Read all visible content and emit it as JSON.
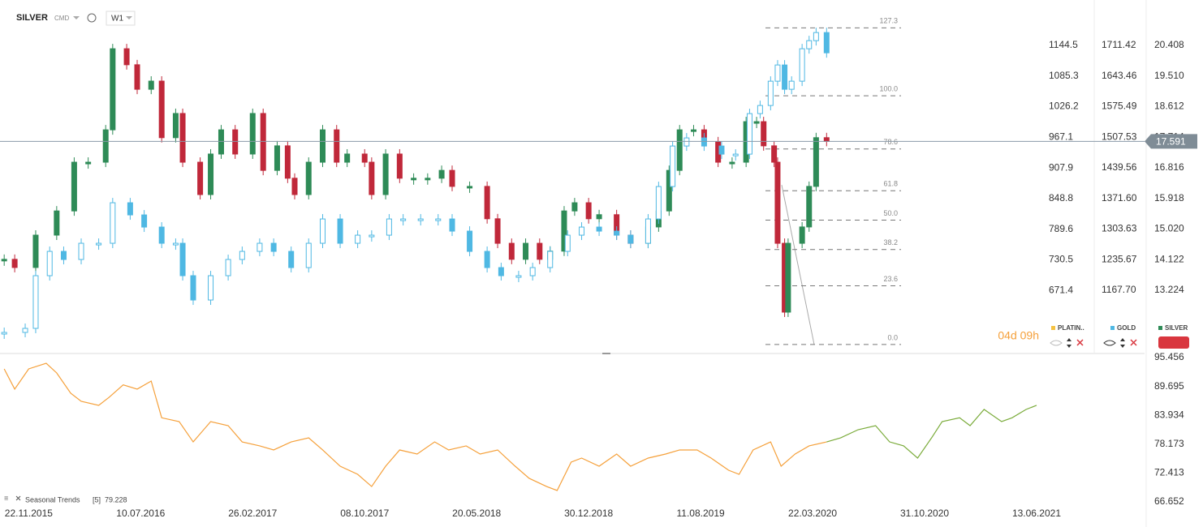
{
  "header": {
    "symbol": "SILVER",
    "market": "CMD",
    "interval": "W1",
    "countdown": "04d 09h"
  },
  "chart_data": [
    {
      "type": "candlestick",
      "xlim": [
        -1.2,
        295.7
      ],
      "xticks": [
        {
          "value": 7,
          "label": "22.11.2015"
        },
        {
          "value": 39,
          "label": "10.07.2016"
        },
        {
          "value": 71,
          "label": "26.02.2017"
        },
        {
          "value": 103,
          "label": "08.10.2017"
        },
        {
          "value": 135,
          "label": "20.05.2018"
        },
        {
          "value": 167,
          "label": "30.12.2018"
        },
        {
          "value": 199,
          "label": "11.08.2019"
        },
        {
          "value": 231,
          "label": "22.03.2020"
        },
        {
          "value": 263,
          "label": "31.10.2020"
        },
        {
          "value": 295,
          "label": "13.06.2021"
        }
      ],
      "ylim": [
        11.39,
        21.74
      ],
      "yticks": [
        20.408,
        {
          "value": 19.51,
          "label": "19.510"
        },
        18.612,
        17.714,
        16.816,
        15.918,
        {
          "value": 15.02,
          "label": "15.020"
        },
        14.122,
        13.224
      ],
      "y2lim": [
        1029.0,
        1812.3
      ],
      "y2ticks": [
        1711.42,
        1643.46,
        1575.49,
        1507.53,
        1439.56,
        {
          "value": 1371.6,
          "label": "1371.60"
        },
        1303.63,
        1235.67,
        {
          "value": 1167.7,
          "label": "1167.70"
        }
      ],
      "y3lim": [
        551.1,
        1232.2
      ],
      "y3ticks": [
        1144.5,
        1085.3,
        1026.2,
        967.1,
        907.9,
        848.8,
        789.6,
        730.5,
        671.4
      ],
      "last_price": 17.591,
      "fib": {
        "low": 11.63,
        "high": 18.93,
        "levels": [
          127.3,
          {
            "value": 100,
            "label": "100.0"
          },
          78.6,
          61.8,
          {
            "value": 50,
            "label": "50.0"
          },
          38.2,
          23.6,
          {
            "value": 0,
            "label": "0.0"
          }
        ]
      },
      "hidden_series": [
        {
          "name": "PLATIN..",
          "color": "#f5c242"
        }
      ],
      "series": [
        {
          "name": "SILVER",
          "color": "#2e8b57",
          "down_color": "#c0283a",
          "x": [
            0,
            3,
            9,
            15,
            20,
            24,
            29,
            31,
            35,
            38,
            42,
            45,
            49,
            51,
            56,
            59,
            62,
            66,
            71,
            74,
            78,
            81,
            83,
            87,
            91,
            95,
            98,
            103,
            105,
            109,
            113,
            117,
            121,
            125,
            128,
            133,
            138,
            141,
            145,
            149,
            153,
            156,
            160,
            163,
            167,
            170,
            175,
            179,
            184,
            187,
            190,
            193,
            197,
            200,
            204,
            208,
            212,
            215,
            217,
            220,
            221,
            223,
            224,
            228,
            230,
            232,
            235
          ],
          "values": [
            14.13,
            13.89,
            14.84,
            15.55,
            16.98,
            16.98,
            17.93,
            20.31,
            19.84,
            19.12,
            19.36,
            17.7,
            18.41,
            16.98,
            16.03,
            17.22,
            17.93,
            17.22,
            18.41,
            16.74,
            17.46,
            16.51,
            16.03,
            16.98,
            17.93,
            16.98,
            17.22,
            16.98,
            16.03,
            17.22,
            16.51,
            16.51,
            16.51,
            16.74,
            16.27,
            16.27,
            15.32,
            14.6,
            14.13,
            14.6,
            14.13,
            14.37,
            15.55,
            15.79,
            15.32,
            15.44,
            14.84,
            14.6,
            15.08,
            15.55,
            16.74,
            17.93,
            17.93,
            17.58,
            16.98,
            16.98,
            18.17,
            18.17,
            17.46,
            16.98,
            14.6,
            12.58,
            14.6,
            15.08,
            16.27,
            17.7,
            17.59
          ]
        },
        {
          "name": "GOLD",
          "color": "#4fb8e3",
          "axis": "y2",
          "x": [
            0,
            6,
            9,
            13,
            17,
            22,
            27,
            31,
            36,
            40,
            45,
            49,
            51,
            54,
            59,
            64,
            68,
            73,
            77,
            82,
            87,
            91,
            96,
            101,
            105,
            110,
            114,
            119,
            124,
            128,
            133,
            138,
            142,
            147,
            151,
            156,
            161,
            165,
            170,
            175,
            179,
            184,
            187,
            191,
            195,
            200,
            205,
            209,
            213,
            216,
            219,
            221,
            223,
            225,
            228,
            230,
            232,
            235
          ],
          "values": [
            1074,
            1083,
            1200,
            1254,
            1236,
            1272,
            1272,
            1362,
            1335,
            1308,
            1272,
            1272,
            1200,
            1146,
            1200,
            1236,
            1254,
            1272,
            1254,
            1218,
            1272,
            1326,
            1272,
            1290,
            1290,
            1326,
            1326,
            1326,
            1326,
            1299,
            1254,
            1218,
            1200,
            1200,
            1218,
            1254,
            1290,
            1308,
            1299,
            1290,
            1272,
            1326,
            1398,
            1488,
            1506,
            1488,
            1470,
            1470,
            1560,
            1578,
            1632,
            1668,
            1614,
            1632,
            1704,
            1722,
            1740,
            1695
          ]
        }
      ]
    },
    {
      "type": "line",
      "xlim": [
        -1.2,
        295.7
      ],
      "ylim": [
        65.68,
        96.1
      ],
      "yticks": [
        95.456,
        89.695,
        83.934,
        78.173,
        72.413,
        66.652
      ],
      "indicator": {
        "name": "Seasonal Trends",
        "period": "[5]",
        "value": 79.228
      },
      "series": [
        {
          "color": "#f5a03a",
          "x": [
            0,
            3,
            7,
            12,
            15,
            19,
            22,
            27,
            30,
            34,
            38,
            42,
            45,
            50,
            54,
            59,
            64,
            68,
            73,
            77,
            82,
            87,
            91,
            96,
            101,
            105,
            109,
            113,
            118,
            123,
            127,
            132,
            136,
            141,
            146,
            150,
            155,
            158,
            162,
            165,
            170,
            175,
            179,
            184,
            189,
            193,
            198,
            202,
            207,
            210,
            214,
            219,
            222,
            226,
            230,
            235
          ],
          "values": [
            93.19,
            89.15,
            93.19,
            94.32,
            92.38,
            88.34,
            86.72,
            85.91,
            87.53,
            90.0,
            89.15,
            90.76,
            83.43,
            82.67,
            78.62,
            82.67,
            81.86,
            78.62,
            77.82,
            77.01,
            78.62,
            79.43,
            77.01,
            73.77,
            72.15,
            69.72,
            73.77,
            77.01,
            76.2,
            78.62,
            77.01,
            77.82,
            76.2,
            77.01,
            73.77,
            71.35,
            69.72,
            68.92,
            74.58,
            75.39,
            73.77,
            76.2,
            73.77,
            75.39,
            76.2,
            77.01,
            77.01,
            75.39,
            72.96,
            72.15,
            77.01,
            78.62,
            73.77,
            76.2,
            77.82,
            78.62
          ]
        },
        {
          "color": "#7aab3a",
          "x": [
            235,
            239,
            244,
            249,
            253,
            257,
            261,
            265,
            268,
            273,
            276,
            280,
            285,
            288,
            292,
            295
          ],
          "values": [
            78.62,
            79.43,
            81.05,
            81.86,
            78.62,
            77.82,
            75.39,
            79.43,
            82.67,
            83.43,
            81.86,
            85.1,
            82.67,
            83.43,
            85.1,
            85.91
          ]
        }
      ]
    }
  ]
}
